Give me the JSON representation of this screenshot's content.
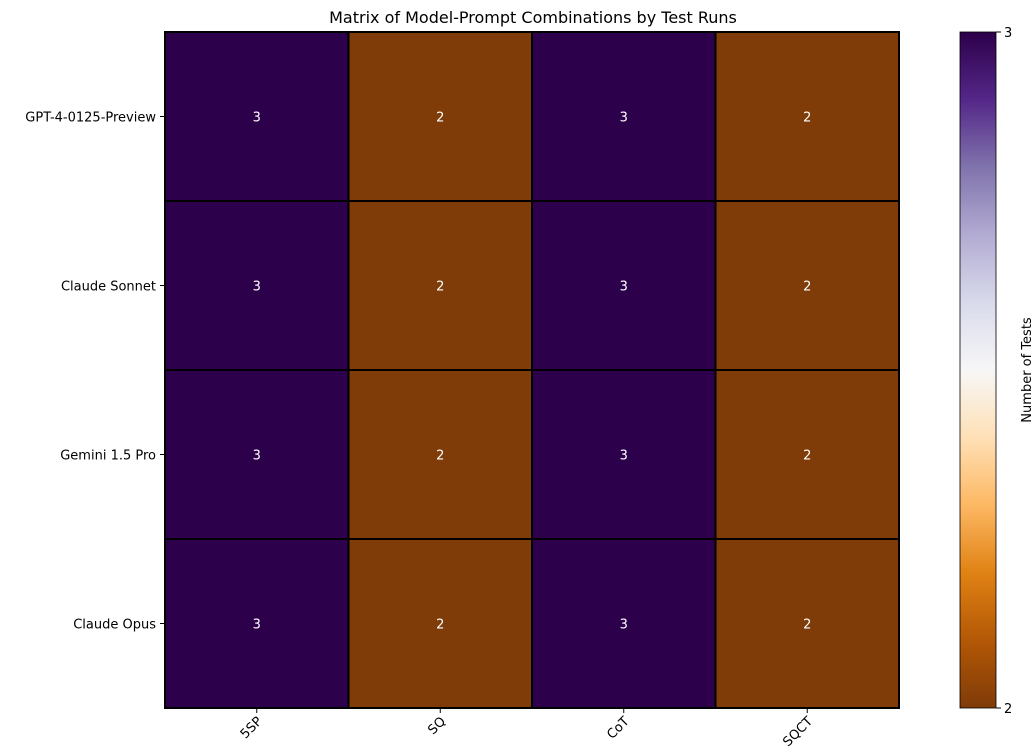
{
  "chart_data": {
    "type": "heatmap",
    "title": "Matrix of Model-Prompt Combinations by Test Runs",
    "rows": [
      "GPT-4-0125-Preview",
      "Claude Sonnet",
      "Gemini 1.5 Pro",
      "Claude Opus"
    ],
    "columns": [
      "5SP",
      "SQ",
      "CoT",
      "SQCT"
    ],
    "values": [
      [
        3,
        2,
        3,
        2
      ],
      [
        3,
        2,
        3,
        2
      ],
      [
        3,
        2,
        3,
        2
      ],
      [
        3,
        2,
        3,
        2
      ]
    ],
    "colorbar": {
      "label": "Number of Tests",
      "min": 2,
      "max": 3,
      "ticks": [
        2,
        3
      ],
      "colormap": "PuOr"
    },
    "colors": {
      "low": "#7f3b08",
      "high": "#2d004b",
      "cell_border": "#000000",
      "annotation": "#ffffff"
    }
  }
}
